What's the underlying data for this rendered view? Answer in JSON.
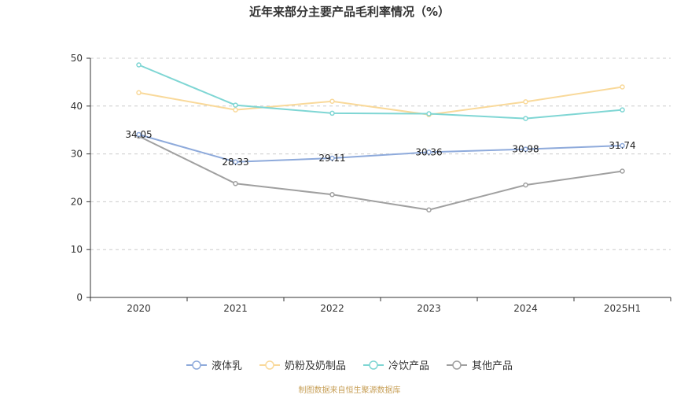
{
  "chart_data": {
    "type": "line",
    "title": "近年来部分主要产品毛利率情况（%）",
    "categories": [
      "2020",
      "2021",
      "2022",
      "2023",
      "2024",
      "2025H1"
    ],
    "ylim": [
      0,
      50
    ],
    "yticks": [
      0,
      10,
      20,
      30,
      40,
      50
    ],
    "grid": true,
    "legend_position": "bottom",
    "series": [
      {
        "name": "液体乳",
        "color": "#8eaadb",
        "values": [
          34.05,
          28.33,
          29.11,
          30.36,
          30.98,
          31.74
        ],
        "labels": [
          "34.05",
          "28.33",
          "29.11",
          "30.36",
          "30.98",
          "31.74"
        ]
      },
      {
        "name": "奶粉及奶制品",
        "color": "#f9d99a",
        "values": [
          42.8,
          39.2,
          41.0,
          38.2,
          40.9,
          44.0
        ]
      },
      {
        "name": "冷饮产品",
        "color": "#7fd6d4",
        "values": [
          48.6,
          40.2,
          38.5,
          38.4,
          37.4,
          39.2
        ]
      },
      {
        "name": "其他产品",
        "color": "#a0a0a0",
        "values": [
          33.7,
          23.8,
          21.5,
          18.3,
          23.5,
          26.4
        ]
      }
    ]
  },
  "source": "制图数据来自恒生聚源数据库"
}
